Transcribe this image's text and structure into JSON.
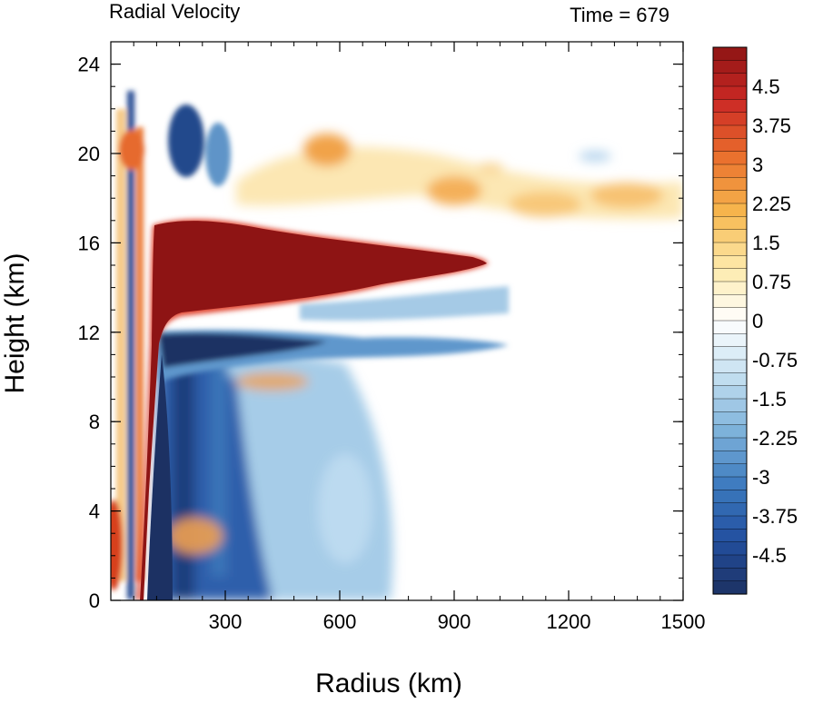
{
  "chart_data": {
    "type": "heatmap",
    "title": "Radial Velocity",
    "time_label": "Time = 679",
    "xlabel": "Radius (km)",
    "ylabel": "Height (km)",
    "xlim": [
      0,
      1500
    ],
    "ylim": [
      0,
      25
    ],
    "x_ticks": [
      "300",
      "600",
      "900",
      "1200",
      "1500"
    ],
    "y_ticks": [
      "0",
      "4",
      "8",
      "12",
      "16",
      "20",
      "24"
    ],
    "colorbar": {
      "min": -5.25,
      "max": 5.25,
      "step": 0.25,
      "labels": [
        "4.5",
        "3.75",
        "3",
        "2.25",
        "1.5",
        "0.75",
        "0",
        "-0.75",
        "-1.5",
        "-2.25",
        "-3",
        "-3.75",
        "-4.5"
      ],
      "colors": [
        "#1c3163",
        "#2350a0",
        "#3d7bbf",
        "#7fb3db",
        "#c5e0f1",
        "#ffffff",
        "#fde9a8",
        "#f6b64d",
        "#ea6f2d",
        "#cc2a25",
        "#8e1414"
      ]
    },
    "features": [
      {
        "name": "outflow-jet",
        "value": 5.25,
        "r_range": [
          120,
          1020
        ],
        "z_range": [
          13,
          17
        ]
      },
      {
        "name": "inflow-layer",
        "value": -5.25,
        "r_range": [
          100,
          650
        ],
        "z_range": [
          9,
          13
        ]
      },
      {
        "name": "low-level-inflow",
        "value": -4.5,
        "r_range": [
          100,
          500
        ],
        "z_range": [
          0,
          9
        ]
      },
      {
        "name": "upper-outflow",
        "value": 2.5,
        "r_range": [
          250,
          1500
        ],
        "z_range": [
          17,
          21
        ]
      }
    ]
  }
}
